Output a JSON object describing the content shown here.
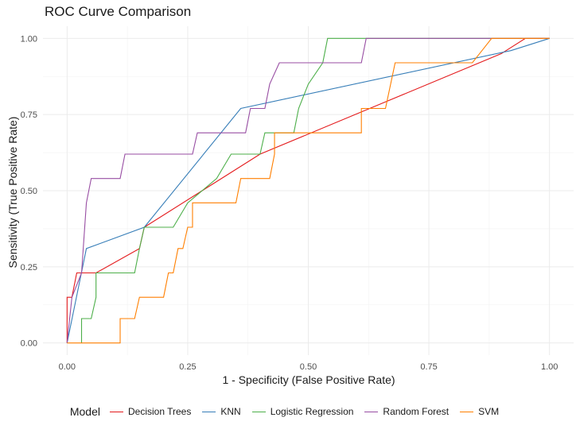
{
  "chart_data": {
    "type": "line",
    "title": "ROC Curve Comparison",
    "xlabel": "1 - Specificity (False Positive Rate)",
    "ylabel": "Sensitivity (True Positive Rate)",
    "xlim": [
      -0.05,
      1.05
    ],
    "ylim": [
      -0.04,
      1.04
    ],
    "xticks": [
      "0.00",
      "0.25",
      "0.50",
      "0.75",
      "1.00"
    ],
    "yticks": [
      "0.00",
      "0.25",
      "0.50",
      "0.75",
      "1.00"
    ],
    "grid": true,
    "legend_title": "Model",
    "legend_position": "bottom",
    "series": [
      {
        "name": "Decision Trees",
        "color": "#e41a1c",
        "points": [
          [
            0,
            0
          ],
          [
            0,
            0.15
          ],
          [
            0.01,
            0.15
          ],
          [
            0.02,
            0.23
          ],
          [
            0.06,
            0.23
          ],
          [
            0.15,
            0.31
          ],
          [
            0.16,
            0.38
          ],
          [
            0.4,
            0.62
          ],
          [
            0.9,
            0.95
          ],
          [
            0.95,
            1.0
          ],
          [
            1.0,
            1.0
          ]
        ]
      },
      {
        "name": "KNN",
        "color": "#377eb8",
        "points": [
          [
            0,
            0
          ],
          [
            0.04,
            0.31
          ],
          [
            0.16,
            0.38
          ],
          [
            0.36,
            0.77
          ],
          [
            0.92,
            0.96
          ],
          [
            1.0,
            1.0
          ]
        ]
      },
      {
        "name": "Logistic Regression",
        "color": "#4daf4a",
        "points": [
          [
            0.03,
            0
          ],
          [
            0.03,
            0.08
          ],
          [
            0.05,
            0.08
          ],
          [
            0.06,
            0.15
          ],
          [
            0.06,
            0.23
          ],
          [
            0.14,
            0.23
          ],
          [
            0.15,
            0.31
          ],
          [
            0.16,
            0.38
          ],
          [
            0.22,
            0.38
          ],
          [
            0.25,
            0.46
          ],
          [
            0.31,
            0.54
          ],
          [
            0.34,
            0.62
          ],
          [
            0.4,
            0.62
          ],
          [
            0.41,
            0.69
          ],
          [
            0.47,
            0.69
          ],
          [
            0.48,
            0.77
          ],
          [
            0.5,
            0.85
          ],
          [
            0.53,
            0.92
          ],
          [
            0.54,
            1.0
          ],
          [
            1.0,
            1.0
          ]
        ]
      },
      {
        "name": "Random Forest",
        "color": "#984ea3",
        "points": [
          [
            0,
            0
          ],
          [
            0.01,
            0.15
          ],
          [
            0.03,
            0.23
          ],
          [
            0.04,
            0.46
          ],
          [
            0.05,
            0.54
          ],
          [
            0.11,
            0.54
          ],
          [
            0.12,
            0.62
          ],
          [
            0.26,
            0.62
          ],
          [
            0.27,
            0.69
          ],
          [
            0.37,
            0.69
          ],
          [
            0.38,
            0.77
          ],
          [
            0.41,
            0.77
          ],
          [
            0.42,
            0.85
          ],
          [
            0.44,
            0.92
          ],
          [
            0.61,
            0.92
          ],
          [
            0.62,
            1.0
          ],
          [
            1.0,
            1.0
          ]
        ]
      },
      {
        "name": "SVM",
        "color": "#ff7f00",
        "points": [
          [
            0,
            0
          ],
          [
            0.11,
            0
          ],
          [
            0.11,
            0.08
          ],
          [
            0.14,
            0.08
          ],
          [
            0.15,
            0.15
          ],
          [
            0.2,
            0.15
          ],
          [
            0.21,
            0.23
          ],
          [
            0.22,
            0.23
          ],
          [
            0.23,
            0.31
          ],
          [
            0.24,
            0.31
          ],
          [
            0.25,
            0.38
          ],
          [
            0.26,
            0.38
          ],
          [
            0.26,
            0.46
          ],
          [
            0.35,
            0.46
          ],
          [
            0.36,
            0.54
          ],
          [
            0.42,
            0.54
          ],
          [
            0.43,
            0.62
          ],
          [
            0.43,
            0.69
          ],
          [
            0.61,
            0.69
          ],
          [
            0.61,
            0.77
          ],
          [
            0.66,
            0.77
          ],
          [
            0.68,
            0.92
          ],
          [
            0.84,
            0.92
          ],
          [
            0.86,
            0.96
          ],
          [
            0.88,
            1.0
          ],
          [
            1.0,
            1.0
          ]
        ]
      }
    ]
  }
}
